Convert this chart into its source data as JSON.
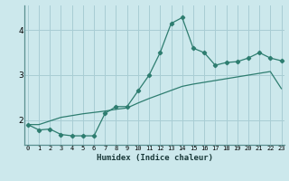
{
  "xlabel": "Humidex (Indice chaleur)",
  "bg_color": "#cce8ec",
  "grid_color": "#a8cdd4",
  "line_color": "#2e7d70",
  "x_ticks": [
    0,
    1,
    2,
    3,
    4,
    5,
    6,
    7,
    8,
    9,
    10,
    11,
    12,
    13,
    14,
    15,
    16,
    17,
    18,
    19,
    20,
    21,
    22,
    23
  ],
  "y_ticks": [
    2,
    3,
    4
  ],
  "ylim": [
    1.45,
    4.55
  ],
  "xlim": [
    -0.3,
    23.3
  ],
  "hours": [
    0,
    1,
    2,
    3,
    4,
    5,
    6,
    7,
    8,
    9,
    10,
    11,
    12,
    13,
    14,
    15,
    16,
    17,
    18,
    19,
    20,
    21,
    22,
    23
  ],
  "main_values": [
    1.9,
    1.78,
    1.8,
    1.68,
    1.65,
    1.65,
    1.65,
    2.15,
    2.3,
    2.3,
    2.65,
    3.0,
    3.5,
    4.15,
    4.28,
    3.6,
    3.5,
    3.22,
    3.28,
    3.3,
    3.38,
    3.5,
    3.38,
    3.32
  ],
  "envelope_values": [
    1.9,
    1.9,
    1.98,
    2.06,
    2.1,
    2.14,
    2.17,
    2.2,
    2.24,
    2.27,
    2.38,
    2.48,
    2.57,
    2.66,
    2.75,
    2.8,
    2.84,
    2.88,
    2.92,
    2.96,
    3.0,
    3.04,
    3.08,
    2.7
  ]
}
